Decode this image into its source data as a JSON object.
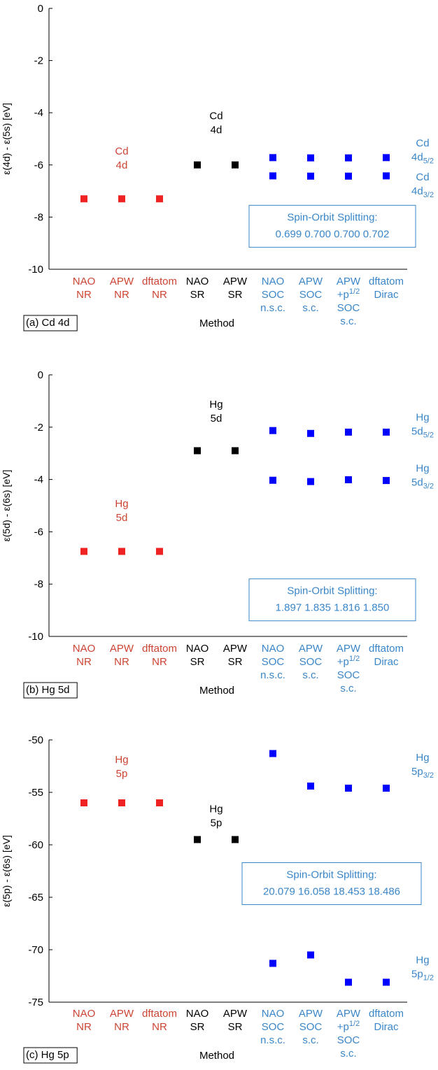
{
  "colors": {
    "nr": "#ee2222",
    "sr": "#000000",
    "soc": "#0000ff",
    "soc_text": "#3a86c8",
    "nr_text": "#cc4433",
    "axis": "#000000"
  },
  "chart_data": [
    {
      "type": "scatter",
      "panel_label": "(a) Cd 4d",
      "ylabel": "ε(4d) - ε(5s)  [eV]",
      "xlabel": "Method",
      "ylim": [
        -10,
        0
      ],
      "yticks": [
        0,
        -2,
        -4,
        -6,
        -8,
        -10
      ],
      "methods": [
        {
          "lines": [
            "NAO",
            "NR"
          ],
          "group": "nr"
        },
        {
          "lines": [
            "APW",
            "NR"
          ],
          "group": "nr"
        },
        {
          "lines": [
            "dftatom",
            "NR"
          ],
          "group": "nr"
        },
        {
          "lines": [
            "NAO",
            "SR"
          ],
          "group": "sr"
        },
        {
          "lines": [
            "APW",
            "SR"
          ],
          "group": "sr"
        },
        {
          "lines": [
            "NAO",
            "SOC",
            "n.s.c."
          ],
          "group": "soc"
        },
        {
          "lines": [
            "APW",
            "SOC",
            "s.c."
          ],
          "group": "soc"
        },
        {
          "lines": [
            "APW",
            "+p1/2",
            "SOC",
            "s.c."
          ],
          "group": "soc"
        },
        {
          "lines": [
            "dftatom",
            "Dirac"
          ],
          "group": "soc"
        }
      ],
      "series": [
        {
          "group": "nr",
          "points": [
            {
              "x": 1,
              "y": -7.3
            },
            {
              "x": 2,
              "y": -7.3
            },
            {
              "x": 3,
              "y": -7.3
            }
          ]
        },
        {
          "group": "sr",
          "points": [
            {
              "x": 4,
              "y": -6.0
            },
            {
              "x": 5,
              "y": -6.0
            }
          ]
        },
        {
          "group": "soc",
          "points": [
            {
              "x": 6,
              "y": -5.72
            },
            {
              "x": 7,
              "y": -5.73
            },
            {
              "x": 8,
              "y": -5.73
            },
            {
              "x": 9,
              "y": -5.72
            }
          ]
        },
        {
          "group": "soc",
          "points": [
            {
              "x": 6,
              "y": -6.42
            },
            {
              "x": 7,
              "y": -6.43
            },
            {
              "x": 8,
              "y": -6.43
            },
            {
              "x": 9,
              "y": -6.42
            }
          ]
        }
      ],
      "annotations": [
        {
          "id": "nr",
          "lines": [
            "Cd",
            "4d"
          ],
          "x": 2,
          "y": -5.6
        },
        {
          "id": "sr",
          "lines": [
            "Cd",
            "4d"
          ],
          "x": 4.5,
          "y": -4.25
        },
        {
          "id": "upper",
          "lines": [
            "Cd",
            "4d5/2"
          ],
          "y": -5.3
        },
        {
          "id": "lower",
          "lines": [
            "Cd",
            "4d3/2"
          ],
          "y": -6.6
        }
      ],
      "so_box": {
        "title": "Spin-Orbit Splitting:",
        "values": [
          "0.699",
          "0.700",
          "0.700",
          "0.702"
        ],
        "y_top": -7.55
      }
    },
    {
      "type": "scatter",
      "panel_label": "(b) Hg 5d",
      "ylabel": "ε(5d) - ε(6s)  [eV]",
      "xlabel": "Method",
      "ylim": [
        -10,
        0
      ],
      "yticks": [
        0,
        -2,
        -4,
        -6,
        -8,
        -10
      ],
      "methods": [
        {
          "lines": [
            "NAO",
            "NR"
          ],
          "group": "nr"
        },
        {
          "lines": [
            "APW",
            "NR"
          ],
          "group": "nr"
        },
        {
          "lines": [
            "dftatom",
            "NR"
          ],
          "group": "nr"
        },
        {
          "lines": [
            "NAO",
            "SR"
          ],
          "group": "sr"
        },
        {
          "lines": [
            "APW",
            "SR"
          ],
          "group": "sr"
        },
        {
          "lines": [
            "NAO",
            "SOC",
            "n.s.c."
          ],
          "group": "soc"
        },
        {
          "lines": [
            "APW",
            "SOC",
            "s.c."
          ],
          "group": "soc"
        },
        {
          "lines": [
            "APW",
            "+p1/2",
            "SOC",
            "s.c."
          ],
          "group": "soc"
        },
        {
          "lines": [
            "dftatom",
            "Dirac"
          ],
          "group": "soc"
        }
      ],
      "series": [
        {
          "group": "nr",
          "points": [
            {
              "x": 1,
              "y": -6.75
            },
            {
              "x": 2,
              "y": -6.75
            },
            {
              "x": 3,
              "y": -6.75
            }
          ]
        },
        {
          "group": "sr",
          "points": [
            {
              "x": 4,
              "y": -2.9
            },
            {
              "x": 5,
              "y": -2.9
            }
          ]
        },
        {
          "group": "soc",
          "points": [
            {
              "x": 6,
              "y": -2.13
            },
            {
              "x": 7,
              "y": -2.24
            },
            {
              "x": 8,
              "y": -2.19
            },
            {
              "x": 9,
              "y": -2.19
            }
          ]
        },
        {
          "group": "soc",
          "points": [
            {
              "x": 6,
              "y": -4.03
            },
            {
              "x": 7,
              "y": -4.08
            },
            {
              "x": 8,
              "y": -4.01
            },
            {
              "x": 9,
              "y": -4.04
            }
          ]
        }
      ],
      "annotations": [
        {
          "id": "nr",
          "lines": [
            "Hg",
            "5d"
          ],
          "x": 2,
          "y": -5.05
        },
        {
          "id": "sr",
          "lines": [
            "Hg",
            "5d"
          ],
          "x": 4.5,
          "y": -1.25
        },
        {
          "id": "upper",
          "lines": [
            "Hg",
            "5d5/2"
          ],
          "y": -1.75
        },
        {
          "id": "lower",
          "lines": [
            "Hg",
            "5d3/2"
          ],
          "y": -3.7
        }
      ],
      "so_box": {
        "title": "Spin-Orbit Splitting:",
        "values": [
          "1.897",
          "1.835",
          "1.816",
          "1.850"
        ],
        "y_top": -7.8
      }
    },
    {
      "type": "scatter",
      "panel_label": "(c) Hg 5p",
      "ylabel": "ε(5p) - ε(6s)  [eV]",
      "xlabel": "Method",
      "ylim": [
        -75,
        -50
      ],
      "yticks": [
        -50,
        -55,
        -60,
        -65,
        -70,
        -75
      ],
      "methods": [
        {
          "lines": [
            "NAO",
            "NR"
          ],
          "group": "nr"
        },
        {
          "lines": [
            "APW",
            "NR"
          ],
          "group": "nr"
        },
        {
          "lines": [
            "dftatom",
            "NR"
          ],
          "group": "nr"
        },
        {
          "lines": [
            "NAO",
            "SR"
          ],
          "group": "sr"
        },
        {
          "lines": [
            "APW",
            "SR"
          ],
          "group": "sr"
        },
        {
          "lines": [
            "NAO",
            "SOC",
            "n.s.c."
          ],
          "group": "soc"
        },
        {
          "lines": [
            "APW",
            "SOC",
            "s.c."
          ],
          "group": "soc"
        },
        {
          "lines": [
            "APW",
            "+p1/2",
            "SOC",
            "s.c."
          ],
          "group": "soc"
        },
        {
          "lines": [
            "dftatom",
            "Dirac"
          ],
          "group": "soc"
        }
      ],
      "series": [
        {
          "group": "nr",
          "points": [
            {
              "x": 1,
              "y": -56.0
            },
            {
              "x": 2,
              "y": -56.0
            },
            {
              "x": 3,
              "y": -56.0
            }
          ]
        },
        {
          "group": "sr",
          "points": [
            {
              "x": 4,
              "y": -59.5
            },
            {
              "x": 5,
              "y": -59.5
            }
          ]
        },
        {
          "group": "soc",
          "points": [
            {
              "x": 6,
              "y": -51.3
            },
            {
              "x": 7,
              "y": -54.4
            },
            {
              "x": 8,
              "y": -54.6
            },
            {
              "x": 9,
              "y": -54.6
            }
          ]
        },
        {
          "group": "soc",
          "points": [
            {
              "x": 6,
              "y": -71.3
            },
            {
              "x": 7,
              "y": -70.5
            },
            {
              "x": 8,
              "y": -73.1
            },
            {
              "x": 9,
              "y": -73.1
            }
          ]
        }
      ],
      "annotations": [
        {
          "id": "nr",
          "lines": [
            "Hg",
            "5p"
          ],
          "x": 2,
          "y": -52.2
        },
        {
          "id": "sr",
          "lines": [
            "Hg",
            "5p"
          ],
          "x": 4.5,
          "y": -56.9
        },
        {
          "id": "upper",
          "lines": [
            "Hg",
            "5p3/2"
          ],
          "y": -52.0
        },
        {
          "id": "lower",
          "lines": [
            "Hg",
            "5p1/2"
          ],
          "y": -71.3
        }
      ],
      "so_box": {
        "title": "Spin-Orbit Splitting:",
        "values": [
          "20.079",
          "16.058",
          "18.453",
          "18.486"
        ],
        "y_top": -61.7
      }
    }
  ]
}
